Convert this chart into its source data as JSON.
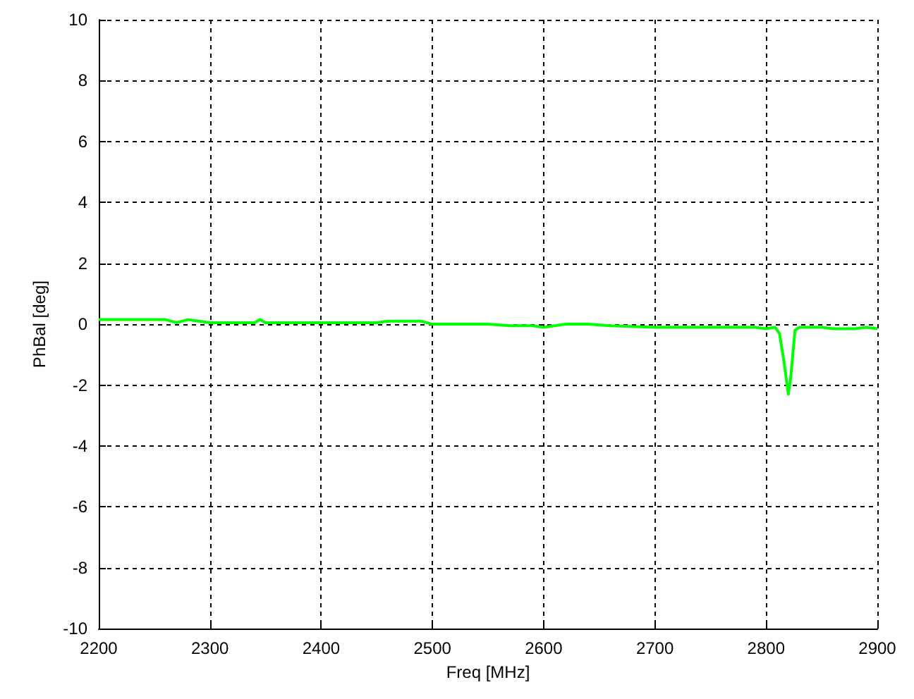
{
  "chart_data": {
    "type": "line",
    "xlabel": "Freq [MHz]",
    "ylabel": "PhBal [deg]",
    "xlim": [
      2200,
      2900
    ],
    "ylim": [
      -10,
      10
    ],
    "xticks": [
      2200,
      2300,
      2400,
      2500,
      2600,
      2700,
      2800,
      2900
    ],
    "yticks": [
      -10,
      -8,
      -6,
      -4,
      -2,
      0,
      2,
      4,
      6,
      8,
      10
    ],
    "grid": true,
    "line_style": "solid",
    "marker": "none",
    "series": [
      {
        "color": "#00ff00",
        "x": [
          2200,
          2260,
          2270,
          2280,
          2290,
          2300,
          2340,
          2345,
          2350,
          2400,
          2450,
          2460,
          2490,
          2500,
          2550,
          2570,
          2590,
          2600,
          2620,
          2640,
          2660,
          2700,
          2750,
          2790,
          2800,
          2808,
          2812,
          2816,
          2820,
          2822,
          2826,
          2830,
          2835,
          2850,
          2860,
          2880,
          2890,
          2900
        ],
        "values": [
          0.15,
          0.15,
          0.05,
          0.15,
          0.1,
          0.05,
          0.05,
          0.15,
          0.05,
          0.05,
          0.05,
          0.1,
          0.1,
          0.0,
          0.0,
          -0.05,
          -0.05,
          -0.1,
          0.0,
          0.0,
          -0.05,
          -0.1,
          -0.1,
          -0.1,
          -0.15,
          -0.1,
          -0.3,
          -1.2,
          -2.3,
          -1.8,
          -0.2,
          -0.1,
          -0.1,
          -0.1,
          -0.15,
          -0.15,
          -0.1,
          -0.15
        ]
      }
    ]
  }
}
